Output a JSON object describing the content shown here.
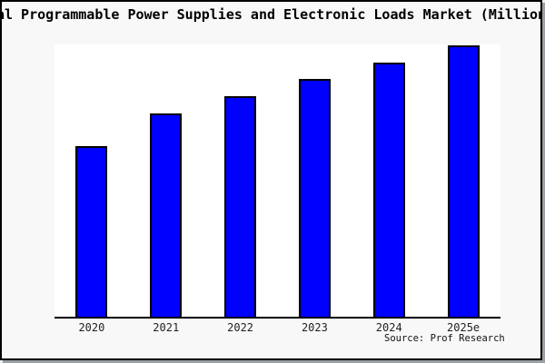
{
  "title": "al Programmable Power Supplies and Electronic Loads Market (Million",
  "source_credit": "Source: Prof Research",
  "colors": {
    "bar_fill": "#0000FF",
    "bar_border": "#000000",
    "plot_background": "#FFFFFF",
    "page_background": "#F8F8F8",
    "frame_border": "#000000"
  },
  "chart_data": {
    "type": "bar",
    "title": "al Programmable Power Supplies and Electronic Loads Market (Million",
    "categories": [
      "2020",
      "2021",
      "2022",
      "2023",
      "2024",
      "2025e"
    ],
    "values": [
      62.9,
      74.9,
      81.3,
      87.6,
      93.6,
      100
    ],
    "values_note": "relative bar heights, percent of tallest bar; y-axis has no tick labels in the image",
    "xlabel": "",
    "ylabel": "",
    "ylim": [
      0,
      100
    ],
    "grid": false,
    "legend": false,
    "y_axis_ticks_visible": false,
    "bar_color": "#0000FF",
    "bar_border_color": "#000000"
  }
}
